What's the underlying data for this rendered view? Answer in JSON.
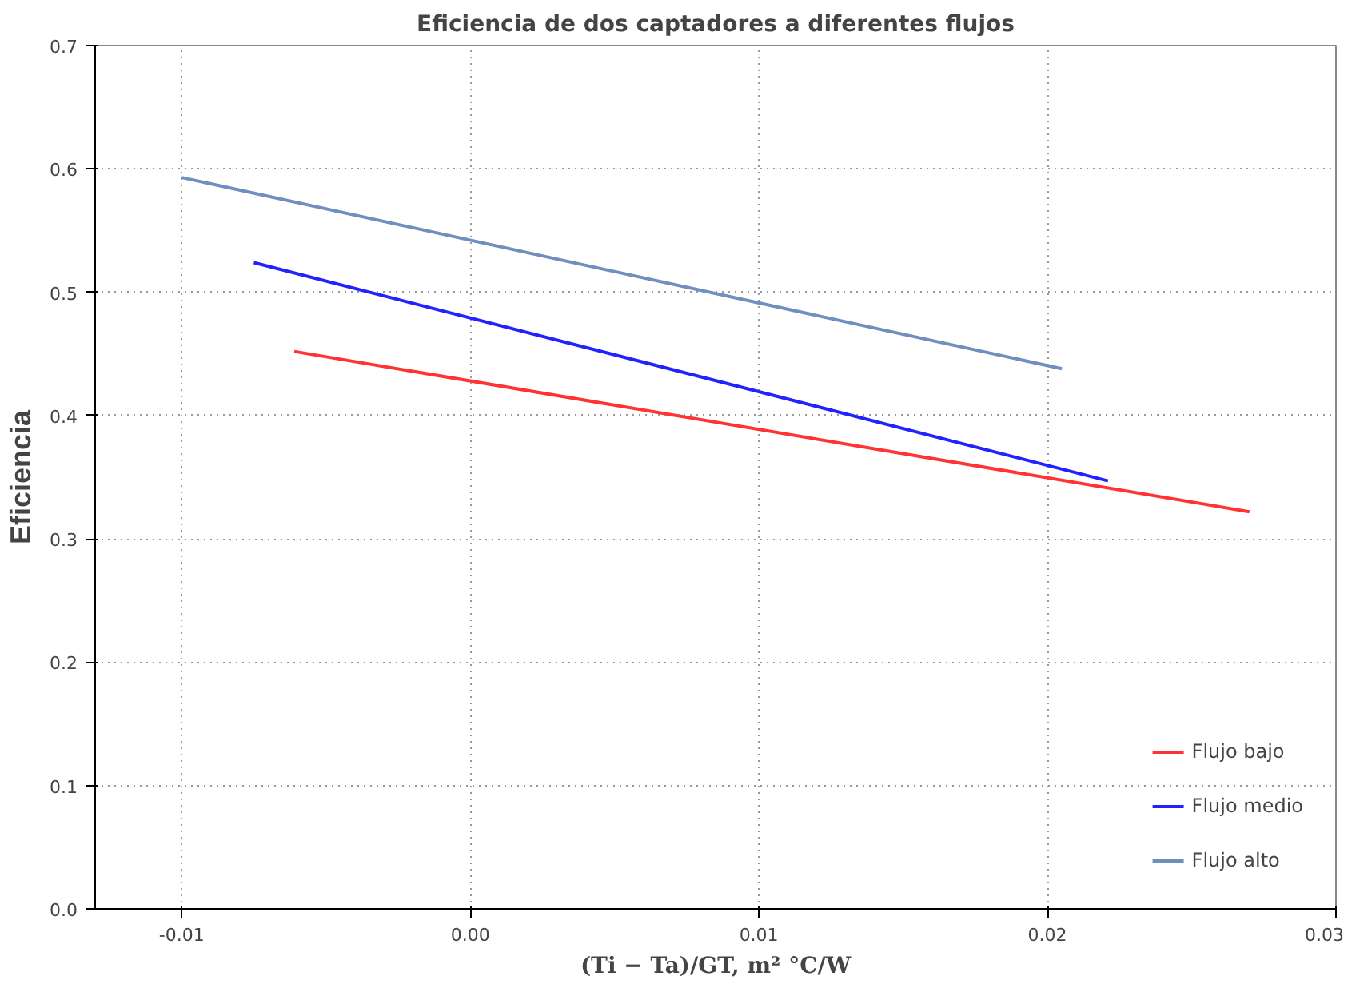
{
  "chart_data": {
    "type": "line",
    "title": "Eficiencia de dos captadores a diferentes flujos",
    "xlabel": "(Ti − Ta)/GT, m² °C/W",
    "ylabel": "Eficiencia",
    "series": [
      {
        "name": "Flujo bajo",
        "color": "#ff3333",
        "x": [
          -0.0061,
          0.027
        ],
        "values": [
          0.452,
          0.322
        ]
      },
      {
        "name": "Flujo medio",
        "color": "#2222ff",
        "x": [
          -0.0075,
          0.0221
        ],
        "values": [
          0.524,
          0.347
        ]
      },
      {
        "name": "Flujo alto",
        "color": "#6f8fbf",
        "x": [
          -0.01,
          0.0205
        ],
        "values": [
          0.593,
          0.438
        ]
      }
    ],
    "xlim": [
      -0.013,
      0.03
    ],
    "ylim": [
      0,
      0.7
    ],
    "xticks": [
      {
        "value": -0.01,
        "label": "-0.01"
      },
      {
        "value": 0,
        "label": "0.00"
      },
      {
        "value": 0.01,
        "label": "0.01"
      },
      {
        "value": 0.02,
        "label": "0.02"
      },
      {
        "value": 0.03,
        "label": "0.03"
      }
    ],
    "yticks": [
      {
        "value": 0,
        "label": "0.0"
      },
      {
        "value": 0.1,
        "label": "0.1"
      },
      {
        "value": 0.2,
        "label": "0.2"
      },
      {
        "value": 0.3,
        "label": "0.3"
      },
      {
        "value": 0.4,
        "label": "0.4"
      },
      {
        "value": 0.5,
        "label": "0.5"
      },
      {
        "value": 0.6,
        "label": "0.6"
      },
      {
        "value": 0.7,
        "label": "0.7"
      }
    ],
    "grid": true,
    "legend": "bottom right",
    "line_style": "solid",
    "marker": "none"
  }
}
